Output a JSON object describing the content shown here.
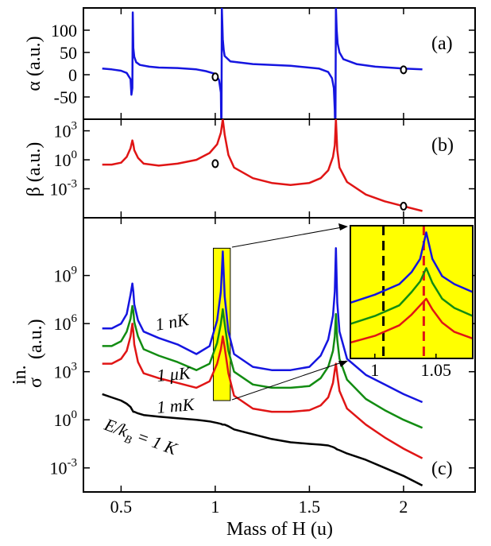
{
  "chart_data": [
    {
      "panel": "a",
      "type": "line",
      "panel_label": "(a)",
      "ylabel": "α (a.u.)",
      "xlim": [
        0.3,
        2.38
      ],
      "ylim": [
        -100,
        150
      ],
      "yticks": [
        -50,
        0,
        50,
        100
      ],
      "ytick_labels": [
        "-50",
        "0",
        "50",
        "100"
      ],
      "series": [
        {
          "color": "#1515e0",
          "x": [
            0.4,
            0.45,
            0.5,
            0.53,
            0.55,
            0.555,
            0.56,
            0.562,
            0.565,
            0.57,
            0.58,
            0.6,
            0.65,
            0.7,
            0.8,
            0.9,
            0.95,
            1.0,
            1.02,
            1.03,
            1.033,
            1.035,
            1.038,
            1.04,
            1.045,
            1.05,
            1.08,
            1.2,
            1.4,
            1.55,
            1.6,
            1.62,
            1.63,
            1.635,
            1.638,
            1.641,
            1.645,
            1.65,
            1.66,
            1.68,
            1.75,
            1.85,
            2.0,
            2.1
          ],
          "y": [
            14,
            12,
            9,
            4,
            -10,
            -45,
            -30,
            140,
            60,
            40,
            28,
            22,
            18,
            16,
            15,
            12,
            8,
            2,
            -12,
            -40,
            -150,
            150,
            110,
            80,
            55,
            42,
            30,
            24,
            20,
            14,
            6,
            -8,
            -30,
            -80,
            -150,
            150,
            100,
            70,
            50,
            35,
            24,
            18,
            14,
            12
          ]
        }
      ],
      "markers": [
        {
          "x": 1.0,
          "y": -5
        },
        {
          "x": 2.0,
          "y": 11
        }
      ]
    },
    {
      "panel": "b",
      "type": "line",
      "panel_label": "(b)",
      "ylabel": "β (a.u.)",
      "yscale": "log",
      "xlim": [
        0.3,
        2.38
      ],
      "ylim_exponent": [
        -6,
        4.2
      ],
      "yticks_exponent": [
        3,
        0,
        -3
      ],
      "ytick_base": "10",
      "ytick_exponents": [
        "3",
        "0",
        "-3"
      ],
      "series": [
        {
          "color": "#e01515",
          "x": [
            0.4,
            0.45,
            0.5,
            0.53,
            0.55,
            0.56,
            0.565,
            0.57,
            0.59,
            0.62,
            0.7,
            0.8,
            0.9,
            0.97,
            1.01,
            1.03,
            1.04,
            1.05,
            1.07,
            1.1,
            1.2,
            1.3,
            1.4,
            1.5,
            1.56,
            1.6,
            1.625,
            1.635,
            1.641,
            1.648,
            1.66,
            1.7,
            1.8,
            1.9,
            2.0,
            2.1
          ],
          "y_exponent": [
            -0.5,
            -0.5,
            -0.3,
            0.3,
            1.2,
            2.0,
            1.6,
            1.0,
            0.2,
            -0.4,
            -0.6,
            -0.4,
            0.0,
            0.7,
            1.6,
            2.8,
            4.2,
            2.6,
            0.5,
            -0.8,
            -1.9,
            -2.4,
            -2.6,
            -2.4,
            -1.9,
            -1.1,
            0.3,
            1.5,
            4.2,
            1.0,
            -0.8,
            -2.3,
            -3.6,
            -4.3,
            -4.8,
            -5.3
          ]
        }
      ],
      "markers": [
        {
          "x": 1.0,
          "y_exponent": -0.4
        },
        {
          "x": 2.0,
          "y_exponent": -4.8
        }
      ]
    },
    {
      "panel": "c",
      "type": "line",
      "panel_label": "(c)",
      "ylabel": "σ",
      "ylabel_sup": "in.",
      "ylabel_unit": "(a.u.)",
      "xlabel": "Mass of H (u)",
      "yscale": "log",
      "xlim": [
        0.3,
        2.38
      ],
      "xticks": [
        0.5,
        1,
        1.5,
        2
      ],
      "xtick_labels": [
        "0.5",
        "1",
        "1.5",
        "2"
      ],
      "ylim_exponent": [
        -4.5,
        12.6
      ],
      "yticks_exponent": [
        9,
        6,
        3,
        0,
        -3
      ],
      "ytick_base": "10",
      "ytick_exponents": [
        "9",
        "6",
        "3",
        "0",
        "-3"
      ],
      "x": [
        0.4,
        0.45,
        0.5,
        0.53,
        0.55,
        0.56,
        0.565,
        0.57,
        0.59,
        0.62,
        0.7,
        0.8,
        0.9,
        0.97,
        1.01,
        1.03,
        1.04,
        1.05,
        1.07,
        1.1,
        1.2,
        1.3,
        1.4,
        1.5,
        1.56,
        1.6,
        1.625,
        1.635,
        1.641,
        1.648,
        1.66,
        1.7,
        1.8,
        1.9,
        2.0,
        2.1
      ],
      "series": [
        {
          "name": "1 nK",
          "color": "#1515e0",
          "y_exponent": [
            5.7,
            5.7,
            6.0,
            6.6,
            7.8,
            8.5,
            8.0,
            7.2,
            6.2,
            5.5,
            5.1,
            4.7,
            4.1,
            4.6,
            6.2,
            8.0,
            10.5,
            7.7,
            5.5,
            4.1,
            3.3,
            3.1,
            3.1,
            3.3,
            4.0,
            5.0,
            6.5,
            8.0,
            10.7,
            7.3,
            5.5,
            3.8,
            2.8,
            2.2,
            1.6,
            1.1
          ]
        },
        {
          "name": "1 μK",
          "color": "#128c12",
          "y_exponent": [
            4.6,
            4.6,
            4.9,
            5.5,
            6.3,
            7.1,
            6.8,
            6.1,
            5.2,
            4.4,
            4.0,
            3.6,
            3.1,
            3.5,
            4.8,
            6.0,
            6.9,
            6.0,
            4.3,
            3.0,
            2.2,
            2.0,
            2.0,
            2.1,
            2.6,
            3.3,
            4.3,
            5.2,
            6.6,
            5.0,
            3.8,
            2.5,
            1.3,
            0.6,
            0.0,
            -0.5
          ]
        },
        {
          "name": "1 mK",
          "color": "#e01515",
          "y_exponent": [
            3.5,
            3.5,
            3.8,
            4.3,
            5.2,
            6.0,
            5.5,
            4.7,
            3.6,
            2.9,
            2.6,
            2.3,
            2.0,
            2.4,
            3.5,
            4.4,
            5.2,
            4.5,
            2.9,
            1.5,
            0.7,
            0.5,
            0.5,
            0.6,
            0.9,
            1.4,
            2.3,
            3.1,
            3.5,
            2.8,
            1.8,
            0.7,
            -0.3,
            -1.1,
            -1.8,
            -2.4
          ]
        },
        {
          "name": "E/k_B = 1 K",
          "color": "#000000",
          "y_exponent": [
            1.6,
            1.4,
            1.2,
            1.0,
            0.8,
            0.6,
            0.5,
            0.5,
            0.4,
            0.3,
            0.2,
            0.1,
            0.0,
            -0.1,
            -0.2,
            -0.25,
            -0.3,
            -0.3,
            -0.4,
            -0.6,
            -0.9,
            -1.2,
            -1.4,
            -1.5,
            -1.55,
            -1.6,
            -1.7,
            -1.75,
            -1.8,
            -1.85,
            -1.9,
            -2.1,
            -2.5,
            -3.0,
            -3.5,
            -4.1
          ]
        }
      ],
      "series_labels": [
        {
          "text": "1 nK",
          "color": "#1515e0"
        },
        {
          "text": "1 μK",
          "color": "#128c12"
        },
        {
          "text": "1 mK",
          "color": "#e01515"
        },
        {
          "text_main": "E/k",
          "text_sub": "B",
          "text_tail": " = 1 K",
          "color": "#000000"
        }
      ],
      "highlight": {
        "x_range": [
          0.99,
          1.08
        ],
        "y_exponent_range": [
          1.2,
          10.7
        ],
        "color": "#ffff00"
      },
      "inset": {
        "xlim": [
          0.98,
          1.08
        ],
        "xticks": [
          1,
          1.05
        ],
        "xtick_labels": [
          "1",
          "1.05"
        ],
        "background": "#ffff00",
        "vlines": [
          {
            "x": 1.007,
            "color": "#000000",
            "style": "dashed"
          },
          {
            "x": 1.04,
            "color": "#e01515",
            "style": "dashed"
          }
        ],
        "series": [
          {
            "color": "#1515e0",
            "x": [
              0.98,
              1.0,
              1.02,
              1.03,
              1.037,
              1.042,
              1.047,
              1.055,
              1.065,
              1.08
            ],
            "y": [
              0.42,
              0.48,
              0.56,
              0.65,
              0.75,
              0.95,
              0.75,
              0.62,
              0.56,
              0.5
            ]
          },
          {
            "color": "#128c12",
            "x": [
              0.98,
              1.0,
              1.02,
              1.03,
              1.037,
              1.042,
              1.047,
              1.055,
              1.065,
              1.08
            ],
            "y": [
              0.26,
              0.32,
              0.4,
              0.5,
              0.58,
              0.68,
              0.57,
              0.45,
              0.38,
              0.32
            ]
          },
          {
            "color": "#e01515",
            "x": [
              0.98,
              1.0,
              1.02,
              1.03,
              1.037,
              1.042,
              1.047,
              1.055,
              1.065,
              1.08
            ],
            "y": [
              0.12,
              0.17,
              0.25,
              0.33,
              0.4,
              0.45,
              0.37,
              0.27,
              0.2,
              0.15
            ]
          }
        ]
      }
    }
  ]
}
